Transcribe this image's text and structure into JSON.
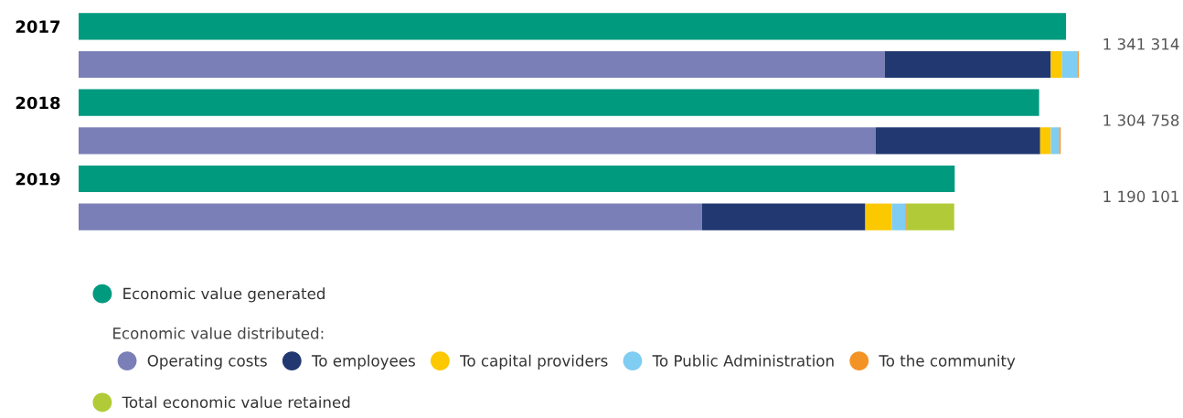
{
  "chart_data": {
    "type": "bar",
    "orientation": "horizontal",
    "stacked": true,
    "categories": [
      "2017",
      null,
      "2018",
      null,
      "2019",
      null
    ],
    "tick_labels": "y",
    "legend": "bottom left",
    "legend_title": "Economic value distributed:",
    "marker": "circle",
    "series": [
      {
        "name": "Economic value generated",
        "color": "#009a7f",
        "values": [
          1341314,
          null,
          1304758,
          null,
          1190101,
          null
        ],
        "value_labels": [
          "1 341 314",
          null,
          "1 304 758",
          null,
          "1 190 101",
          null
        ]
      },
      {
        "name": "Operating costs",
        "color": "#7a7fb7",
        "values": [
          null,
          1095000,
          null,
          1082800,
          null,
          846900
        ]
      },
      {
        "name": "To employees",
        "color": "#213871",
        "values": [
          null,
          225600,
          null,
          223400,
          null,
          221800
        ]
      },
      {
        "name": "To capital providers",
        "color": "#fcc800",
        "values": [
          null,
          15300,
          null,
          14500,
          null,
          36000
        ]
      },
      {
        "name": "To Public Administration",
        "color": "#7fcdf2",
        "values": [
          null,
          21600,
          null,
          11200,
          null,
          18200
        ]
      },
      {
        "name": "To the community",
        "color": "#f39325",
        "values": [
          null,
          1200,
          null,
          2100,
          null,
          2000
        ]
      },
      {
        "name": "Total economic value retained",
        "color": "#b0cb37",
        "values": [
          null,
          null,
          null,
          null,
          null,
          64500
        ]
      }
    ]
  }
}
